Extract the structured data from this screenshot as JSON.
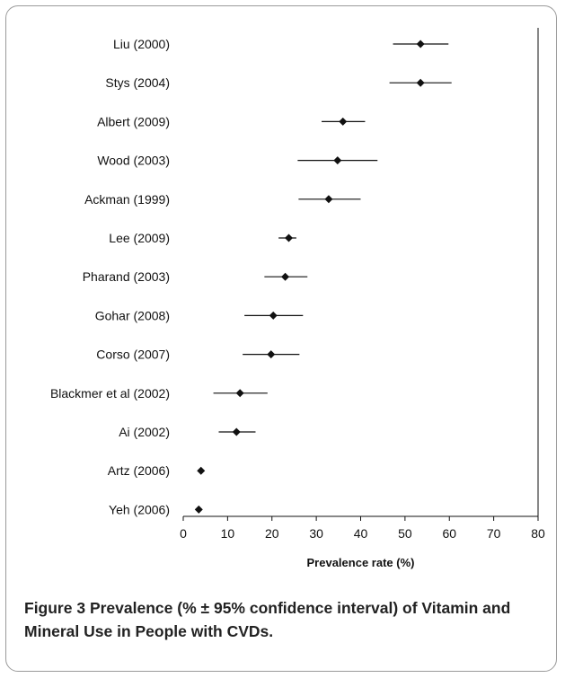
{
  "chart_data": {
    "type": "scatter",
    "title": "",
    "xlabel": "Prevalence rate (%)",
    "ylabel": "",
    "xlim": [
      0,
      80
    ],
    "xticks": [
      0,
      10,
      20,
      30,
      40,
      50,
      60,
      70,
      80
    ],
    "grid": false,
    "categories": [
      "Liu (2000)",
      "Stys (2004)",
      "Albert (2009)",
      "Wood (2003)",
      "Ackman (1999)",
      "Lee (2009)",
      "Pharand (2003)",
      "Gohar (2008)",
      "Corso (2007)",
      "Blackmer et al (2002)",
      "Ai (2002)",
      "Artz (2006)",
      "Yeh (2006)"
    ],
    "series": [
      {
        "values": [
          53.5,
          53.5,
          36,
          34.8,
          32.8,
          23.8,
          23,
          20.3,
          19.8,
          12.8,
          12,
          4,
          3.5
        ],
        "ci_low": [
          47.3,
          46.5,
          31.2,
          25.8,
          26,
          21.5,
          18.3,
          13.8,
          13.4,
          6.8,
          8,
          4,
          3.5
        ],
        "ci_high": [
          59.8,
          60.5,
          41,
          43.8,
          40,
          25.5,
          28,
          27,
          26.2,
          19,
          16.3,
          4,
          3.5
        ]
      }
    ],
    "colors": {
      "marker": "#111111",
      "axis": "#111111"
    }
  },
  "caption": {
    "label": "Figure 3",
    "text": "Prevalence (% ± 95% confidence interval) of Vitamin and Mineral Use in People with CVDs."
  }
}
